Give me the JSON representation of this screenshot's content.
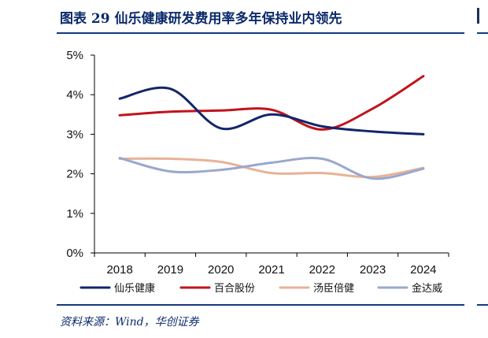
{
  "figure": {
    "title": "图表 29   仙乐健康研发费用率多年保持业内领先",
    "source": "资料来源：Wind，华创证券"
  },
  "colors": {
    "title": "#0b2a6b",
    "rule": "#123a7a"
  },
  "chart_data": {
    "type": "line",
    "title": "",
    "xlabel": "",
    "ylabel": "",
    "categories": [
      "2018",
      "2019",
      "2020",
      "2021",
      "2022",
      "2023",
      "2024"
    ],
    "y_ticks": [
      "0%",
      "1%",
      "2%",
      "3%",
      "4%",
      "5%"
    ],
    "ylim": [
      0,
      5
    ],
    "grid": false,
    "legend_position": "bottom",
    "series": [
      {
        "name": "仙乐健康",
        "color": "#13256a",
        "values": [
          3.9,
          4.15,
          3.15,
          3.5,
          3.2,
          3.07,
          3.0
        ]
      },
      {
        "name": "百合股份",
        "color": "#c0141c",
        "values": [
          3.48,
          3.57,
          3.6,
          3.62,
          3.12,
          3.65,
          4.47
        ]
      },
      {
        "name": "汤臣倍健",
        "color": "#e8b296",
        "values": [
          2.38,
          2.38,
          2.3,
          2.02,
          2.02,
          1.92,
          2.15
        ]
      },
      {
        "name": "金达威",
        "color": "#9aa8cc",
        "values": [
          2.4,
          2.06,
          2.1,
          2.28,
          2.38,
          1.88,
          2.13
        ]
      }
    ]
  }
}
